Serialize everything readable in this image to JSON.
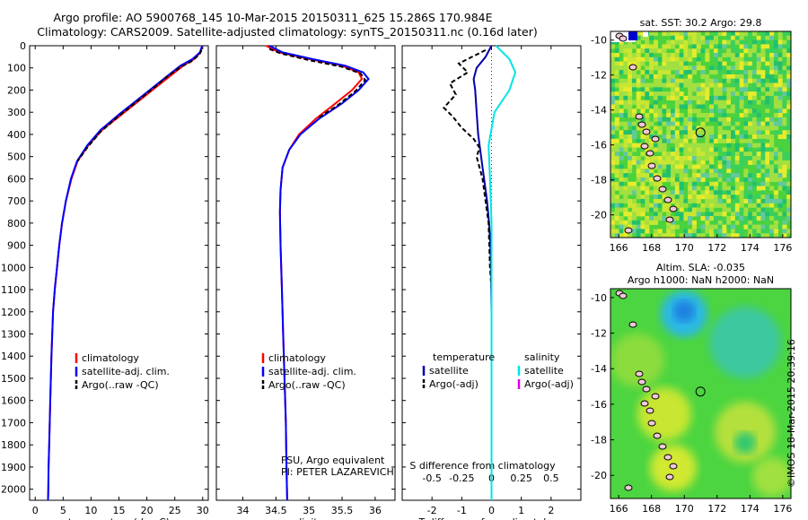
{
  "header": {
    "title_line1": "Argo profile: AO 5900768_145 10-Mar-2015 20150311_625 15.286S 170.984E",
    "title_line2": "Climatology: CARS2009. Satellite-adjusted climatology: synTS_20150311.nc (0.16d later)"
  },
  "stamp": "©IMOS 18-Mar-2015 20:39:16",
  "chart_data": [
    {
      "type": "line",
      "id": "temperature",
      "xlabel": "temperature (deg C)",
      "ylabel": "",
      "xlim": [
        -1,
        31
      ],
      "ylim": [
        2050,
        0
      ],
      "xticks": [
        0,
        5,
        10,
        15,
        20,
        25,
        30
      ],
      "xticklabels": [
        "0",
        "5",
        "10",
        "15",
        "20",
        "25",
        "30"
      ],
      "yticks": [
        0,
        100,
        200,
        300,
        400,
        500,
        600,
        700,
        800,
        900,
        1000,
        1100,
        1200,
        1300,
        1400,
        1500,
        1600,
        1700,
        1800,
        1900,
        2000
      ],
      "yticklabels": [
        "0",
        "100",
        "200",
        "300",
        "400",
        "500",
        "600",
        "700",
        "800",
        "900",
        "1000",
        "1100",
        "1200",
        "1300",
        "1400",
        "1500",
        "1600",
        "1700",
        "1800",
        "1900",
        "2000"
      ],
      "legend": [
        "climatology",
        "satellite-adj. clim.",
        "Argo(..raw -QC)"
      ],
      "series": [
        {
          "name": "climatology",
          "color": "#ff0000",
          "style": "solid",
          "x": [
            29.9,
            29.6,
            28.5,
            26.5,
            24.5,
            22.0,
            19.0,
            15.5,
            12.0,
            9.5,
            7.6,
            6.5,
            5.5,
            4.8,
            4.3,
            3.9,
            3.5,
            3.2,
            2.9,
            2.7,
            2.5,
            2.4,
            2.35,
            2.3
          ],
          "y": [
            0,
            30,
            60,
            90,
            130,
            180,
            240,
            310,
            380,
            450,
            520,
            600,
            700,
            800,
            900,
            1000,
            1100,
            1200,
            1400,
            1600,
            1800,
            1900,
            2000,
            2050
          ]
        },
        {
          "name": "satellite-adj. clim.",
          "color": "#0000ff",
          "style": "solid",
          "x": [
            29.9,
            29.5,
            28.2,
            26.0,
            24.0,
            21.5,
            18.5,
            15.0,
            11.7,
            9.3,
            7.5,
            6.4,
            5.5,
            4.8,
            4.3,
            3.9,
            3.5,
            3.2,
            2.9,
            2.7,
            2.5,
            2.4,
            2.35,
            2.3
          ],
          "y": [
            0,
            30,
            60,
            90,
            130,
            180,
            240,
            310,
            380,
            450,
            520,
            600,
            700,
            800,
            900,
            1000,
            1100,
            1200,
            1400,
            1600,
            1800,
            1900,
            2000,
            2050
          ]
        },
        {
          "name": "Argo(..raw -QC)",
          "color": "#000000",
          "style": "dashed",
          "x": [
            29.8,
            29.4,
            28.0,
            25.8,
            23.6,
            21.2,
            18.3,
            14.8,
            11.6,
            9.3,
            7.6
          ],
          "y": [
            20,
            40,
            70,
            100,
            140,
            190,
            250,
            320,
            390,
            460,
            520
          ]
        }
      ]
    },
    {
      "type": "line",
      "id": "salinity",
      "xlabel": "salinity",
      "ylabel": "",
      "xlim": [
        33.6,
        36.3
      ],
      "ylim": [
        2050,
        0
      ],
      "xticks": [
        34,
        34.5,
        35,
        35.5,
        36
      ],
      "xticklabels": [
        "34",
        "34.5",
        "35",
        "35.5",
        "36"
      ],
      "legend": [
        "climatology",
        "satellite-adj. clim.",
        "Argo(..raw -QC)"
      ],
      "annotation": [
        "FSU, Argo equivalent",
        "PI: PETER LAZAREVICH"
      ],
      "series": [
        {
          "name": "climatology",
          "color": "#ff0000",
          "style": "solid",
          "x": [
            34.35,
            34.55,
            35.0,
            35.5,
            35.75,
            35.8,
            35.65,
            35.4,
            35.1,
            34.85,
            34.7,
            34.6,
            34.57,
            34.56,
            34.57,
            34.59,
            34.61,
            34.63,
            34.65,
            34.66,
            34.67
          ],
          "y": [
            0,
            30,
            60,
            90,
            120,
            150,
            200,
            260,
            330,
            400,
            470,
            550,
            650,
            750,
            900,
            1100,
            1300,
            1500,
            1700,
            1900,
            2050
          ]
        },
        {
          "name": "satellite-adj. clim.",
          "color": "#0000ff",
          "style": "solid",
          "x": [
            34.4,
            34.6,
            35.05,
            35.55,
            35.82,
            35.9,
            35.75,
            35.5,
            35.15,
            34.87,
            34.7,
            34.6,
            34.57,
            34.56,
            34.57,
            34.59,
            34.61,
            34.63,
            34.65,
            34.66,
            34.67
          ],
          "y": [
            0,
            30,
            60,
            90,
            120,
            150,
            200,
            260,
            330,
            400,
            470,
            550,
            650,
            750,
            900,
            1100,
            1300,
            1500,
            1700,
            1900,
            2050
          ]
        },
        {
          "name": "Argo(..raw -QC)",
          "color": "#000000",
          "style": "dashed",
          "x": [
            34.4,
            34.58,
            35.0,
            35.5,
            35.78,
            35.85,
            35.7,
            35.45,
            35.12
          ],
          "y": [
            15,
            35,
            65,
            95,
            125,
            155,
            205,
            265,
            330
          ]
        }
      ]
    },
    {
      "type": "line",
      "id": "differences",
      "xlabel": "T difference from climatology",
      "xlabel_top": "S difference from climatology",
      "ylabel": "",
      "xlim": [
        -3,
        3
      ],
      "ylim": [
        2050,
        0
      ],
      "xticks": [
        -2,
        -1,
        0,
        1,
        2
      ],
      "xticklabels": [
        "-2",
        "-1",
        "0",
        "1",
        "2"
      ],
      "sticks": [
        -0.5,
        -0.25,
        0,
        0.25,
        0.5
      ],
      "sticklabels": [
        "-0.5",
        "-0.25",
        "0",
        "0.25",
        "0.5"
      ],
      "legend_temperature_title": "temperature",
      "legend_salinity_title": "salinity",
      "legend_temperature": [
        "satellite",
        "Argo(-adj)"
      ],
      "legend_salinity": [
        "satellite",
        "Argo(-adj)"
      ],
      "series": [
        {
          "name": "T satellite",
          "color": "#0000aa",
          "style": "solid",
          "x": [
            0.0,
            -0.2,
            -0.5,
            -0.6,
            -0.55,
            -0.5,
            -0.45,
            -0.35,
            -0.25,
            -0.15,
            -0.08,
            -0.04,
            -0.02,
            0.0,
            0.0
          ],
          "y": [
            0,
            50,
            100,
            150,
            200,
            300,
            400,
            500,
            600,
            700,
            800,
            900,
            1000,
            1200,
            2050
          ]
        },
        {
          "name": "T Argo(-adj)",
          "color": "#000000",
          "style": "dashed",
          "x": [
            -0.2,
            -1.1,
            -0.8,
            -1.4,
            -1.2,
            -1.6,
            -1.3,
            -1.0,
            -0.6,
            -0.4,
            -0.5,
            -0.3,
            -0.1,
            -0.05,
            0.0
          ],
          "y": [
            20,
            80,
            120,
            170,
            220,
            280,
            320,
            370,
            420,
            460,
            500,
            600,
            800,
            1000,
            1100
          ]
        },
        {
          "name": "S satellite",
          "color": "#00e5e5",
          "style": "solid",
          "x": [
            0.15,
            0.6,
            0.8,
            0.6,
            0.1,
            -0.1,
            -0.05,
            0.0,
            0.0
          ],
          "y": [
            0,
            60,
            120,
            200,
            300,
            450,
            600,
            800,
            2050
          ]
        },
        {
          "name": "S Argo(-adj)",
          "color": "#e000e0",
          "style": "solid",
          "x": [],
          "y": []
        }
      ]
    }
  ],
  "maps": {
    "sst": {
      "title": "sat. SST: 30.2 Argo: 29.8",
      "xticklabels": [
        "166",
        "168",
        "170",
        "172",
        "174",
        "176"
      ],
      "yticklabels": [
        "-10",
        "-12",
        "-14",
        "-16",
        "-18",
        "-20"
      ],
      "float_lon": 170.984,
      "float_lat": -15.286
    },
    "sla": {
      "title_line1": "Altim. SLA: -0.035",
      "title_line2": "Argo h1000: NaN h2000: NaN",
      "xticklabels": [
        "166",
        "168",
        "170",
        "172",
        "174",
        "176"
      ],
      "yticklabels": [
        "-10",
        "-12",
        "-14",
        "-16",
        "-18",
        "-20"
      ],
      "float_lon": 170.984,
      "float_lat": -15.286
    }
  }
}
